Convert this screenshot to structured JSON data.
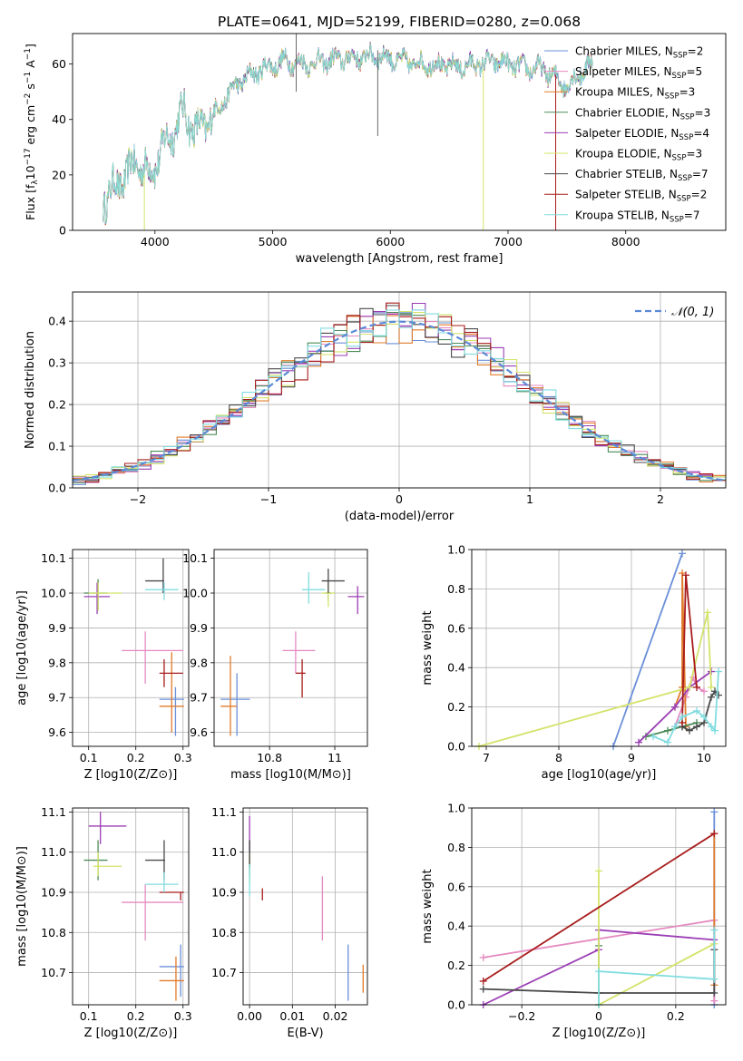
{
  "title": "PLATE=0641, MJD=52199, FIBERID=0280, z=0.068",
  "colors": [
    "#6a8fd8",
    "#e58ac0",
    "#e07b2b",
    "#4d8b58",
    "#9b3fb5",
    "#d4e36a",
    "#4a4a4a",
    "#a81c1c",
    "#80dce0"
  ],
  "legend_series": [
    {
      "name": "Chabrier MILES, N",
      "sub": "SSP",
      "n": "=2",
      "color": "#6a8fd8"
    },
    {
      "name": "Salpeter MILES, N",
      "sub": "SSP",
      "n": "=5",
      "color": "#e58ac0"
    },
    {
      "name": "Kroupa MILES, N",
      "sub": "SSP",
      "n": "=3",
      "color": "#e07b2b"
    },
    {
      "name": "Chabrier ELODIE, N",
      "sub": "SSP",
      "n": "=3",
      "color": "#4d8b58"
    },
    {
      "name": "Salpeter ELODIE, N",
      "sub": "SSP",
      "n": "=4",
      "color": "#9b3fb5"
    },
    {
      "name": "Kroupa ELODIE, N",
      "sub": "SSP",
      "n": "=3",
      "color": "#d4e36a"
    },
    {
      "name": "Chabrier STELIB, N",
      "sub": "SSP",
      "n": "=7",
      "color": "#4a4a4a"
    },
    {
      "name": "Salpeter STELIB, N",
      "sub": "SSP",
      "n": "=2",
      "color": "#a81c1c"
    },
    {
      "name": "Kroupa STELIB, N",
      "sub": "SSP",
      "n": "=7",
      "color": "#80dce0"
    }
  ],
  "chart_data": [
    {
      "type": "line",
      "id": "spectrum",
      "xlabel": "wavelength [Angstrom, rest frame]",
      "ylabel": "Flux [f_λ10^-17 erg cm^-2 s^-1 A^-1]",
      "xlim": [
        3300,
        8850
      ],
      "ylim": [
        0,
        71
      ],
      "xticks": [
        4000,
        5000,
        6000,
        7000,
        8000
      ],
      "yticks": [
        0,
        20,
        40,
        60
      ],
      "continuum": {
        "x": [
          3560,
          3700,
          3850,
          3950,
          4100,
          4250,
          4350,
          4500,
          4700,
          4900,
          5100,
          5300,
          5600,
          5900,
          6100,
          6300,
          6600,
          6900,
          7100,
          7300,
          7500,
          7700
        ],
        "y": [
          11,
          17,
          25,
          20,
          32,
          43,
          35,
          42,
          53,
          58,
          61,
          60,
          62,
          63,
          61,
          60,
          59,
          61,
          59,
          58,
          52,
          60
        ]
      },
      "sharp_features": [
        {
          "x": 5200,
          "ymin": 50,
          "ymax": 71,
          "color": "#6a6a6a"
        },
        {
          "x": 5893,
          "ymin": 34,
          "ymax": 65,
          "color": "#6a6a6a"
        },
        {
          "x": 3910,
          "ymin": 0,
          "ymax": 20,
          "color": "#d4e36a"
        },
        {
          "x": 6790,
          "ymin": 0,
          "ymax": 58,
          "color": "#d4e36a"
        },
        {
          "x": 7405,
          "ymin": 0,
          "ymax": 56,
          "color": "#a81c1c"
        }
      ]
    },
    {
      "type": "line",
      "id": "residuals",
      "xlabel": "(data-model)/error",
      "ylabel": "Normed distribution",
      "xlim": [
        -2.5,
        2.5
      ],
      "ylim": [
        0,
        0.47
      ],
      "xticks": [
        -2,
        -1,
        0,
        1,
        2
      ],
      "yticks": [
        0.0,
        0.1,
        0.2,
        0.3,
        0.4
      ],
      "grid": true,
      "legend": {
        "label": "𝒩(0, 1)",
        "placement": "top-right"
      }
    },
    {
      "type": "scatter",
      "id": "age_vs_Z",
      "xlabel": "Z [log10(Z/Z⊙)]",
      "ylabel": "age [log10(age/yr)]",
      "xlim": [
        0.066,
        0.312
      ],
      "ylim": [
        9.56,
        10.125
      ],
      "xticks": [
        0.1,
        0.2,
        0.3
      ],
      "yticks": [
        9.6,
        9.7,
        9.8,
        9.9,
        10.0,
        10.1
      ],
      "grid": true,
      "points": [
        {
          "c": 0,
          "x": 0.284,
          "y": 9.695,
          "xe": [
            0.25,
            0.302
          ],
          "ye": [
            9.59,
            9.73
          ]
        },
        {
          "c": 1,
          "x": 0.22,
          "y": 9.835,
          "xe": [
            0.17,
            0.3
          ],
          "ye": [
            9.74,
            9.89
          ]
        },
        {
          "c": 2,
          "x": 0.276,
          "y": 9.675,
          "xe": [
            0.25,
            0.302
          ],
          "ye": [
            9.6,
            9.83
          ]
        },
        {
          "c": 3,
          "x": 0.12,
          "y": 10.0,
          "xe": [
            0.09,
            0.14
          ],
          "ye": [
            9.95,
            10.04
          ]
        },
        {
          "c": 4,
          "x": 0.118,
          "y": 9.99,
          "xe": [
            0.09,
            0.145
          ],
          "ye": [
            9.94,
            10.03
          ]
        },
        {
          "c": 5,
          "x": 0.12,
          "y": 10.0,
          "xe": [
            0.1,
            0.17
          ],
          "ye": [
            9.95,
            10.03
          ]
        },
        {
          "c": 6,
          "x": 0.258,
          "y": 10.035,
          "xe": [
            0.22,
            0.26
          ],
          "ye": [
            10.0,
            10.1
          ]
        },
        {
          "c": 7,
          "x": 0.26,
          "y": 9.77,
          "xe": [
            0.25,
            0.3
          ],
          "ye": [
            9.73,
            9.81
          ]
        },
        {
          "c": 8,
          "x": 0.26,
          "y": 10.01,
          "xe": [
            0.22,
            0.29
          ],
          "ye": [
            9.98,
            10.03
          ]
        }
      ]
    },
    {
      "type": "scatter",
      "id": "age_vs_mass",
      "xlabel": "mass [log10(M/M⊙)]",
      "ylabel": "",
      "xlim": [
        10.63,
        11.1
      ],
      "ylim": [
        9.56,
        10.125
      ],
      "xticks": [
        10.8,
        11.0
      ],
      "yticks": [
        9.6,
        9.7,
        9.8,
        9.9,
        10.0,
        10.1
      ],
      "grid": true,
      "points": [
        {
          "c": 0,
          "x": 10.7,
          "y": 9.695,
          "xe": [
            10.65,
            10.74
          ],
          "ye": [
            9.59,
            9.77
          ]
        },
        {
          "c": 1,
          "x": 10.88,
          "y": 9.835,
          "xe": [
            10.84,
            10.94
          ],
          "ye": [
            9.77,
            9.89
          ]
        },
        {
          "c": 2,
          "x": 10.68,
          "y": 9.675,
          "xe": [
            10.65,
            10.7
          ],
          "ye": [
            9.59,
            9.82
          ]
        },
        {
          "c": 3,
          "x": 10.98,
          "y": 10.0,
          "xe": [
            10.97,
            10.99
          ],
          "ye": [
            9.98,
            10.04
          ]
        },
        {
          "c": 4,
          "x": 11.07,
          "y": 9.99,
          "xe": [
            11.04,
            11.09
          ],
          "ye": [
            9.94,
            10.02
          ]
        },
        {
          "c": 5,
          "x": 10.98,
          "y": 10.0,
          "xe": [
            10.96,
            11.0
          ],
          "ye": [
            9.96,
            10.03
          ]
        },
        {
          "c": 6,
          "x": 10.98,
          "y": 10.035,
          "xe": [
            10.96,
            11.03
          ],
          "ye": [
            10.0,
            10.07
          ]
        },
        {
          "c": 7,
          "x": 10.9,
          "y": 9.77,
          "xe": [
            10.88,
            10.91
          ],
          "ye": [
            9.7,
            9.81
          ]
        },
        {
          "c": 8,
          "x": 10.92,
          "y": 10.01,
          "xe": [
            10.9,
            10.97
          ],
          "ye": [
            9.97,
            10.06
          ]
        }
      ]
    },
    {
      "type": "line",
      "id": "mass_weight_vs_age",
      "xlabel": "age [log10(age/yr)]",
      "ylabel": "mass weight",
      "xlim": [
        6.8,
        10.3
      ],
      "ylim": [
        0,
        1
      ],
      "xticks": [
        7,
        8,
        9,
        10
      ],
      "yticks": [
        0.0,
        0.2,
        0.4,
        0.6,
        0.8,
        1.0
      ],
      "grid": true,
      "series": [
        {
          "c": 0,
          "x": [
            8.75,
            9.7
          ],
          "y": [
            0.0,
            0.98
          ]
        },
        {
          "c": 1,
          "x": [
            9.6,
            9.75,
            9.85,
            9.9,
            10.0
          ],
          "y": [
            0.1,
            0.25,
            0.35,
            0.3,
            0.28
          ]
        },
        {
          "c": 2,
          "x": [
            9.6,
            9.7,
            9.7,
            9.75
          ],
          "y": [
            0.2,
            0.3,
            0.88,
            0.1
          ]
        },
        {
          "c": 3,
          "x": [
            9.2,
            9.5,
            9.7,
            9.9
          ],
          "y": [
            0.05,
            0.08,
            0.1,
            0.12
          ]
        },
        {
          "c": 4,
          "x": [
            9.1,
            9.6,
            9.8,
            10.1
          ],
          "y": [
            0.02,
            0.2,
            0.3,
            0.38
          ]
        },
        {
          "c": 5,
          "x": [
            6.9,
            9.8,
            10.05,
            10.1
          ],
          "y": [
            0.0,
            0.3,
            0.68,
            0.3
          ]
        },
        {
          "c": 6,
          "x": [
            9.7,
            9.8,
            9.9,
            10.0,
            10.1,
            10.15,
            10.2
          ],
          "y": [
            0.1,
            0.08,
            0.1,
            0.12,
            0.25,
            0.28,
            0.26
          ]
        },
        {
          "c": 7,
          "x": [
            9.7,
            9.75,
            9.9
          ],
          "y": [
            0.12,
            0.87,
            0.3
          ]
        },
        {
          "c": 8,
          "x": [
            9.3,
            9.5,
            9.6,
            9.7,
            9.9,
            10.0,
            10.1,
            10.15,
            10.2
          ],
          "y": [
            0.05,
            0.02,
            0.1,
            0.15,
            0.18,
            0.15,
            0.1,
            0.08,
            0.38
          ]
        }
      ]
    },
    {
      "type": "scatter",
      "id": "mass_vs_Z",
      "xlabel": "Z [log10(Z/Z⊙)]",
      "ylabel": "mass [log10(M/M⊙)]",
      "xlim": [
        0.066,
        0.312
      ],
      "ylim": [
        10.62,
        11.11
      ],
      "xticks": [
        0.1,
        0.2,
        0.3
      ],
      "yticks": [
        10.7,
        10.8,
        10.9,
        11.0,
        11.1
      ],
      "grid": true,
      "points": [
        {
          "c": 0,
          "x": 0.295,
          "y": 10.715,
          "xe": [
            0.25,
            0.302
          ],
          "ye": [
            10.64,
            10.77
          ]
        },
        {
          "c": 1,
          "x": 0.22,
          "y": 10.875,
          "xe": [
            0.17,
            0.3
          ],
          "ye": [
            10.78,
            10.92
          ]
        },
        {
          "c": 2,
          "x": 0.285,
          "y": 10.68,
          "xe": [
            0.25,
            0.302
          ],
          "ye": [
            10.63,
            10.74
          ]
        },
        {
          "c": 3,
          "x": 0.12,
          "y": 10.98,
          "xe": [
            0.09,
            0.14
          ],
          "ye": [
            10.93,
            11.03
          ]
        },
        {
          "c": 4,
          "x": 0.125,
          "y": 11.065,
          "xe": [
            0.1,
            0.18
          ],
          "ye": [
            11.02,
            11.1
          ]
        },
        {
          "c": 5,
          "x": 0.12,
          "y": 10.965,
          "xe": [
            0.11,
            0.17
          ],
          "ye": [
            10.94,
            11.0
          ]
        },
        {
          "c": 6,
          "x": 0.26,
          "y": 10.98,
          "xe": [
            0.22,
            0.262
          ],
          "ye": [
            10.93,
            11.03
          ]
        },
        {
          "c": 7,
          "x": 0.295,
          "y": 10.9,
          "xe": [
            0.25,
            0.302
          ],
          "ye": [
            10.88,
            10.9
          ]
        },
        {
          "c": 8,
          "x": 0.26,
          "y": 10.92,
          "xe": [
            0.22,
            0.29
          ],
          "ye": [
            10.9,
            10.95
          ]
        }
      ]
    },
    {
      "type": "scatter",
      "id": "mass_vs_ebv",
      "xlabel": "E(B-V)",
      "ylabel": "",
      "xlim": [
        -0.0015,
        0.0275
      ],
      "ylim": [
        10.62,
        11.11
      ],
      "xticks": [
        0.0,
        0.01,
        0.02
      ],
      "xtick_labels": [
        "0.00",
        "0.01",
        "0.02"
      ],
      "yticks": [
        10.7,
        10.8,
        10.9,
        11.0,
        11.1
      ],
      "grid": true,
      "points": [
        {
          "c": 0,
          "x": 0.023,
          "y": 10.7,
          "ye": [
            10.63,
            10.77
          ]
        },
        {
          "c": 1,
          "x": 0.017,
          "y": 10.875,
          "ye": [
            10.78,
            10.94
          ]
        },
        {
          "c": 2,
          "x": 0.0265,
          "y": 10.68,
          "ye": [
            10.65,
            10.72
          ]
        },
        {
          "c": 3,
          "x": 0.0,
          "y": 10.98,
          "ye": [
            10.94,
            11.03
          ]
        },
        {
          "c": 4,
          "x": 0.0,
          "y": 11.065,
          "ye": [
            11.0,
            11.09
          ]
        },
        {
          "c": 5,
          "x": 0.0,
          "y": 10.97,
          "ye": [
            10.92,
            11.0
          ]
        },
        {
          "c": 6,
          "x": 0.0,
          "y": 11.0,
          "ye": [
            10.96,
            11.03
          ]
        },
        {
          "c": 7,
          "x": 0.003,
          "y": 10.895,
          "ye": [
            10.88,
            10.91
          ]
        },
        {
          "c": 8,
          "x": 0.0,
          "y": 10.93,
          "ye": [
            10.89,
            10.97
          ]
        }
      ]
    },
    {
      "type": "line",
      "id": "mass_weight_vs_Z",
      "xlabel": "Z [log10(Z/Z⊙)]",
      "ylabel": "mass weight",
      "xlim": [
        -0.33,
        0.33
      ],
      "ylim": [
        0,
        1
      ],
      "xticks": [
        -0.2,
        0.0,
        0.2
      ],
      "yticks": [
        0.0,
        0.2,
        0.4,
        0.6,
        0.8,
        1.0
      ],
      "grid": true,
      "series": [
        {
          "c": 0,
          "x": [
            0.3,
            0.3
          ],
          "y": [
            0.0,
            0.98
          ]
        },
        {
          "c": 1,
          "x": [
            -0.3,
            0.3,
            0.3
          ],
          "y": [
            0.24,
            0.43,
            0.02
          ]
        },
        {
          "c": 2,
          "x": [
            0.3,
            0.3
          ],
          "y": [
            0.1,
            0.87
          ]
        },
        {
          "c": 3,
          "x": [
            0.0,
            0.0
          ],
          "y": [
            0.0,
            0.3
          ]
        },
        {
          "c": 4,
          "x": [
            -0.3,
            0.0,
            0.0,
            0.3
          ],
          "y": [
            0.0,
            0.28,
            0.38,
            0.33
          ]
        },
        {
          "c": 5,
          "x": [
            0.0,
            0.0,
            0.3
          ],
          "y": [
            0.68,
            0.0,
            0.31
          ]
        },
        {
          "c": 6,
          "x": [
            -0.3,
            0.0,
            0.3,
            0.3
          ],
          "y": [
            0.08,
            0.06,
            0.06,
            0.28
          ]
        },
        {
          "c": 7,
          "x": [
            -0.3,
            0.3
          ],
          "y": [
            0.12,
            0.87
          ]
        },
        {
          "c": 8,
          "x": [
            0.0,
            0.0,
            0.3,
            0.3
          ],
          "y": [
            0.0,
            0.17,
            0.13,
            0.38
          ]
        }
      ]
    }
  ]
}
